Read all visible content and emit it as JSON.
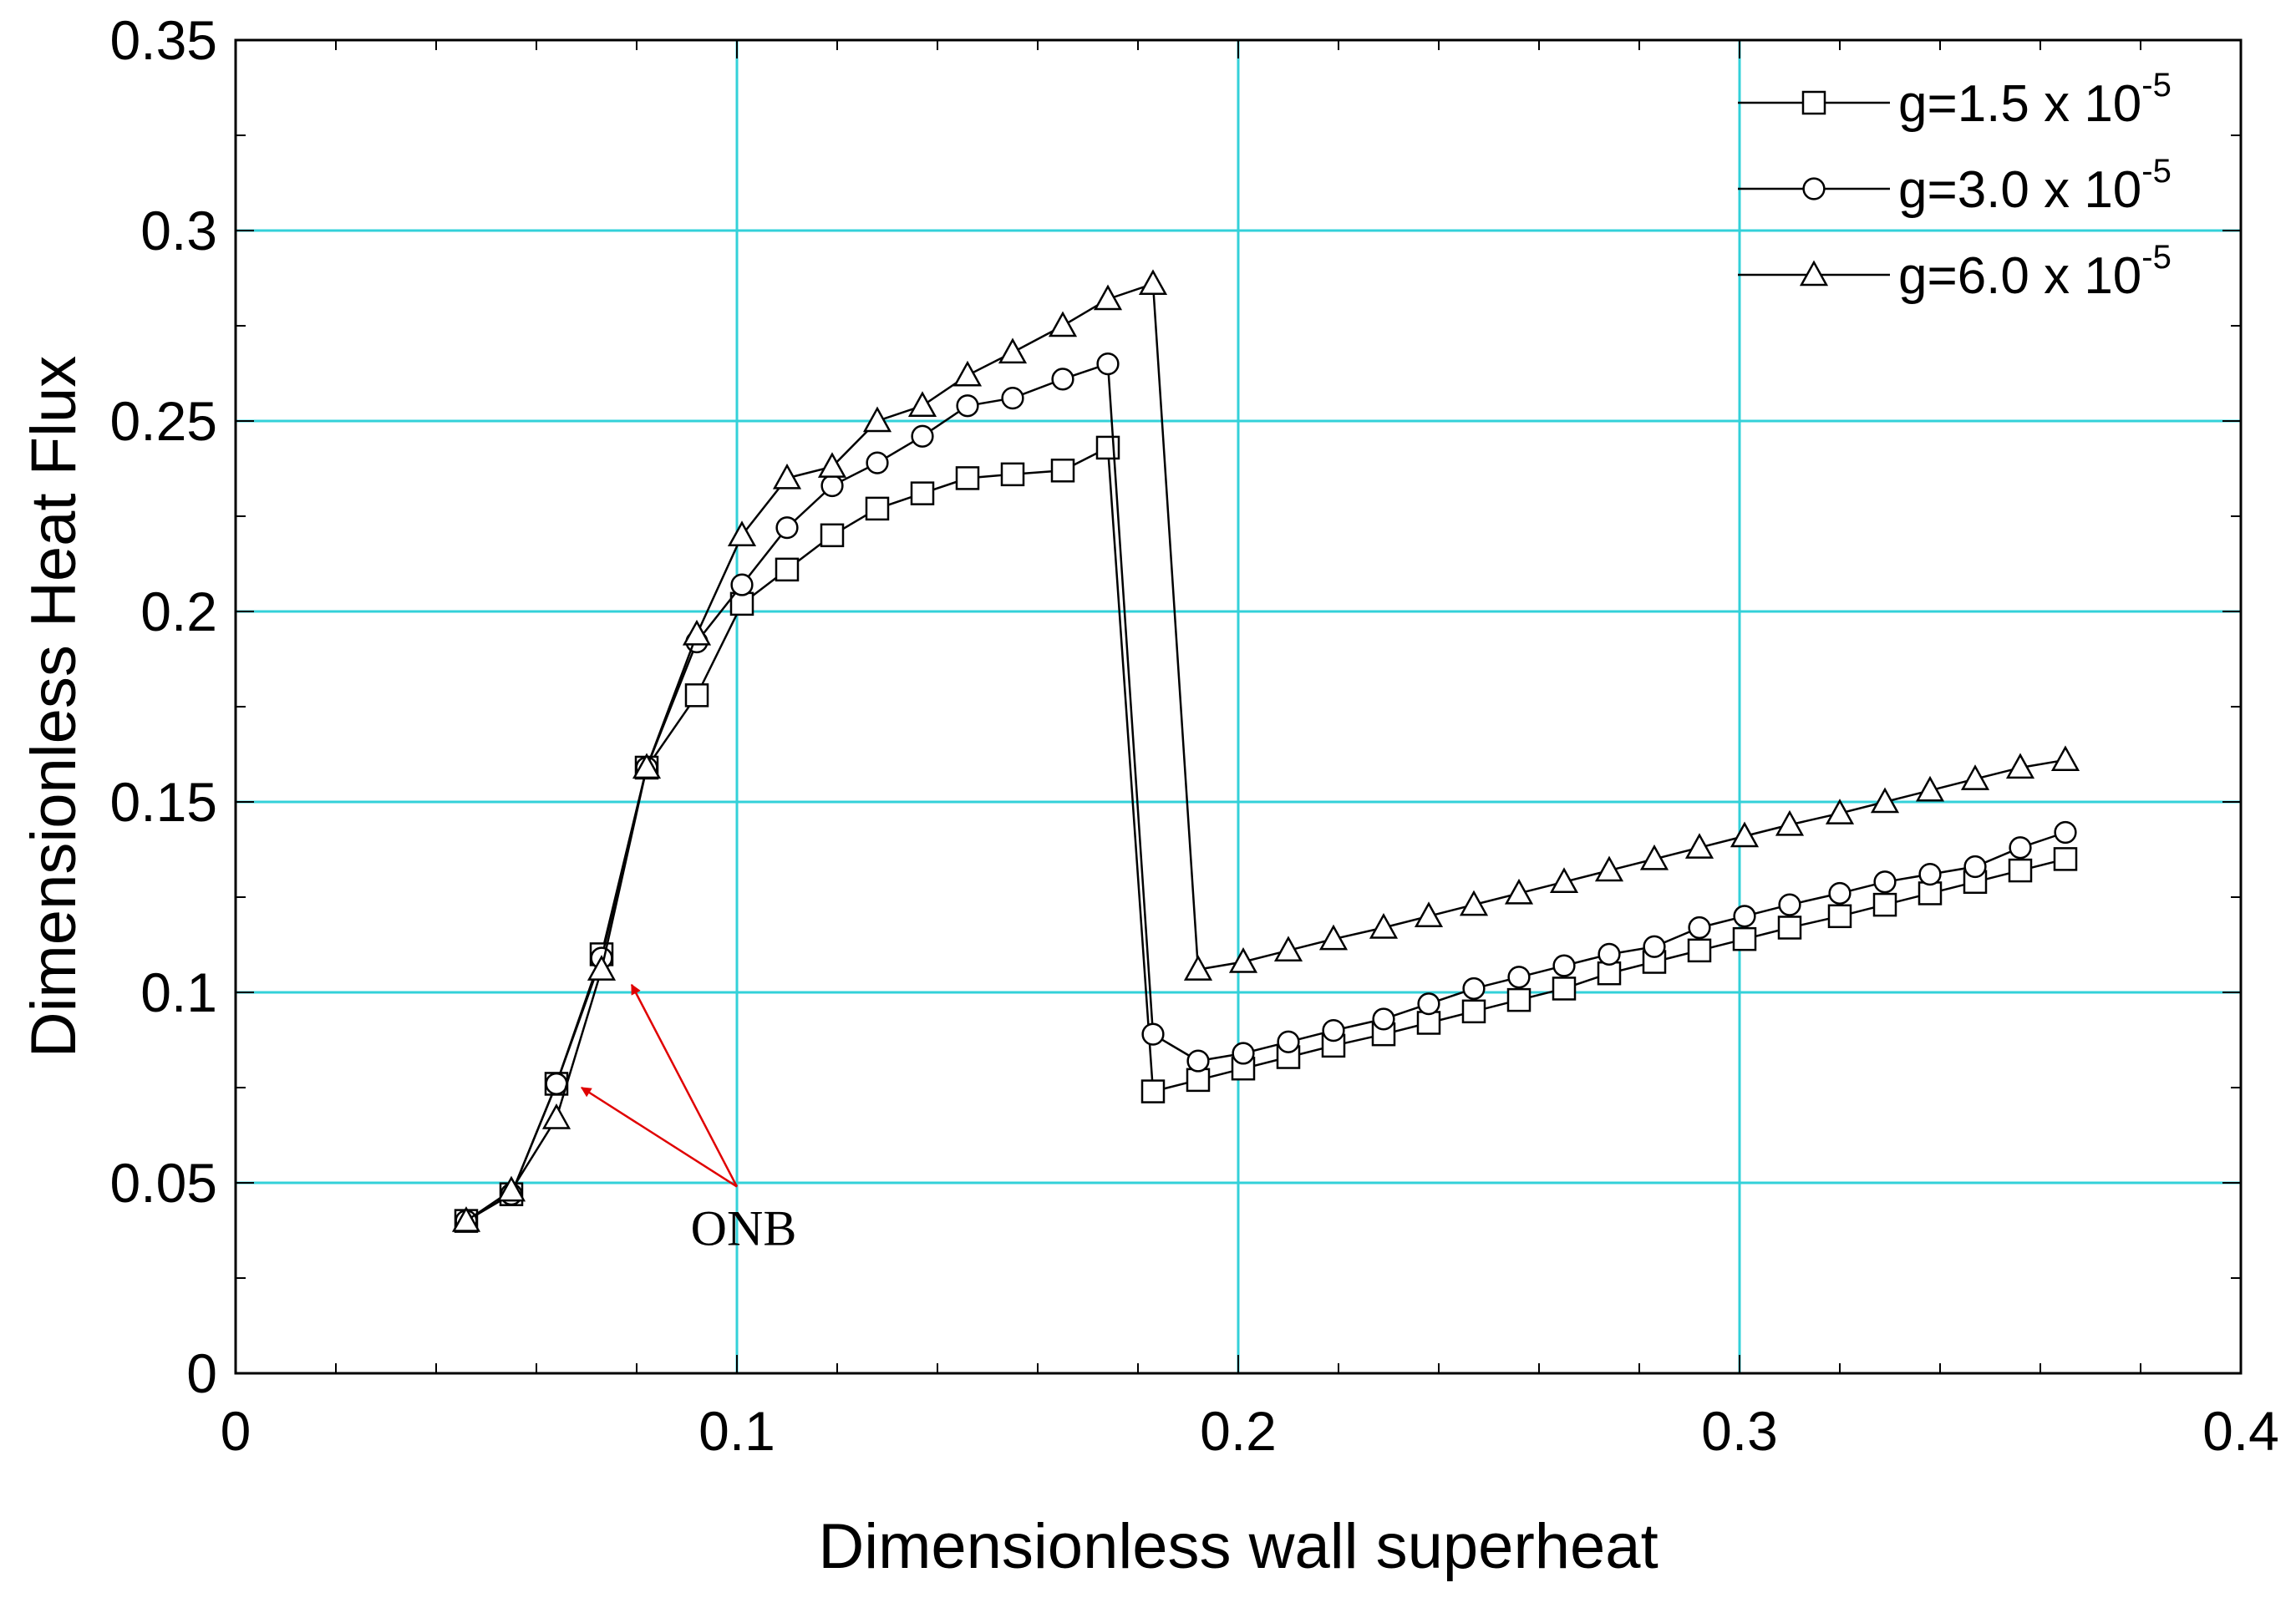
{
  "chart_data": {
    "type": "line",
    "title": "",
    "xlabel": "Dimensionless wall superheat",
    "ylabel": "Dimensionless Heat Flux",
    "xlim": [
      0,
      0.4
    ],
    "ylim": [
      0,
      0.35
    ],
    "x_ticks": [
      "0",
      "0.1",
      "0.2",
      "0.3",
      "0.4"
    ],
    "y_ticks": [
      "0",
      "0.05",
      "0.1",
      "0.15",
      "0.2",
      "0.25",
      "0.3",
      "0.35"
    ],
    "grid": true,
    "grid_color": "#33d1d9",
    "legend_position": "top-right",
    "series": [
      {
        "name": "g=1.5 x 10",
        "exponent": "-5",
        "marker": "square",
        "x": [
          0.046,
          0.055,
          0.064,
          0.073,
          0.082,
          0.092,
          0.101,
          0.11,
          0.119,
          0.128,
          0.137,
          0.146,
          0.155,
          0.165,
          0.174,
          0.183,
          0.192,
          0.201,
          0.21,
          0.219,
          0.229,
          0.238,
          0.247,
          0.256,
          0.265,
          0.274,
          0.283,
          0.292,
          0.301,
          0.31,
          0.32,
          0.329,
          0.338,
          0.347,
          0.356,
          0.365
        ],
        "y": [
          0.04,
          0.047,
          0.076,
          0.11,
          0.159,
          0.178,
          0.202,
          0.211,
          0.22,
          0.227,
          0.231,
          0.235,
          0.236,
          0.237,
          0.243,
          0.074,
          0.077,
          0.08,
          0.083,
          0.086,
          0.089,
          0.092,
          0.095,
          0.098,
          0.101,
          0.105,
          0.108,
          0.111,
          0.114,
          0.117,
          0.12,
          0.123,
          0.126,
          0.129,
          0.132,
          0.135
        ]
      },
      {
        "name": "g=3.0 x 10",
        "exponent": "-5",
        "marker": "circle",
        "x": [
          0.046,
          0.055,
          0.064,
          0.073,
          0.082,
          0.092,
          0.101,
          0.11,
          0.119,
          0.128,
          0.137,
          0.146,
          0.155,
          0.165,
          0.174,
          0.183,
          0.192,
          0.201,
          0.21,
          0.219,
          0.229,
          0.238,
          0.247,
          0.256,
          0.265,
          0.274,
          0.283,
          0.292,
          0.301,
          0.31,
          0.32,
          0.329,
          0.338,
          0.347,
          0.356,
          0.365
        ],
        "y": [
          0.04,
          0.047,
          0.076,
          0.109,
          0.159,
          0.192,
          0.207,
          0.222,
          0.233,
          0.239,
          0.246,
          0.254,
          0.256,
          0.261,
          0.265,
          0.089,
          0.082,
          0.084,
          0.087,
          0.09,
          0.093,
          0.097,
          0.101,
          0.104,
          0.107,
          0.11,
          0.112,
          0.117,
          0.12,
          0.123,
          0.126,
          0.129,
          0.131,
          0.133,
          0.138,
          0.142
        ]
      },
      {
        "name": "g=6.0 x 10",
        "exponent": "-5",
        "marker": "triangle",
        "x": [
          0.046,
          0.055,
          0.064,
          0.073,
          0.082,
          0.092,
          0.101,
          0.11,
          0.119,
          0.128,
          0.137,
          0.146,
          0.155,
          0.165,
          0.174,
          0.183,
          0.192,
          0.201,
          0.21,
          0.219,
          0.229,
          0.238,
          0.247,
          0.256,
          0.265,
          0.274,
          0.283,
          0.292,
          0.301,
          0.31,
          0.32,
          0.329,
          0.338,
          0.347,
          0.356,
          0.365
        ],
        "y": [
          0.04,
          0.048,
          0.067,
          0.106,
          0.159,
          0.194,
          0.22,
          0.235,
          0.238,
          0.25,
          0.254,
          0.262,
          0.268,
          0.275,
          0.282,
          0.286,
          0.106,
          0.108,
          0.111,
          0.114,
          0.117,
          0.12,
          0.123,
          0.126,
          0.129,
          0.132,
          0.135,
          0.138,
          0.141,
          0.144,
          0.147,
          0.15,
          0.153,
          0.156,
          0.159,
          0.161
        ]
      }
    ],
    "annotations": [
      {
        "text": "ONB",
        "color": "#e00000",
        "arrows_to": [
          [
            0.079,
            0.102
          ],
          [
            0.069,
            0.075
          ]
        ],
        "arrows_from": [
          0.1,
          0.049
        ]
      }
    ]
  }
}
